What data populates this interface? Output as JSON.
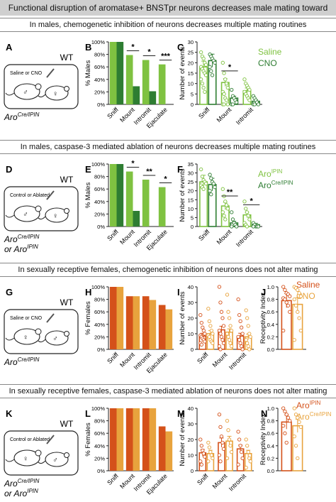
{
  "title": "Functional disruption of aromatase+ BNSTpr neurons decreases male mating toward females",
  "sections": [
    {
      "heading": "In males, chemogenetic inhibition of neurons decreases multiple mating routines"
    },
    {
      "heading": "In males, caspase-3 mediated ablation of neurons decreases multiple mating routines"
    },
    {
      "heading": "In sexually receptive females, chemogenetic inhibition of neurons does not alter mating"
    },
    {
      "heading": "In sexually receptive females, caspase-3 mediated ablation of neurons does not alter mating"
    }
  ],
  "colors": {
    "light_green": "#7fc241",
    "dark_green": "#2e7d32",
    "dark_orange": "#d4511a",
    "light_orange": "#e8a33d",
    "line": "#444444"
  },
  "schematics": [
    {
      "panel": "A",
      "wt": "WT",
      "inner": "Saline or CNO",
      "genotype_main": "Aro",
      "genotype_sup": "Cre/IPIN",
      "genotype2_main": "",
      "genotype2_sup": "",
      "mouse_sex": "male"
    },
    {
      "panel": "D",
      "wt": "WT",
      "inner": "Control or Ablated",
      "genotype_main": "Aro",
      "genotype_sup": "Cre/IPIN",
      "genotype2_main": "or Aro",
      "genotype2_sup": "IPIN",
      "mouse_sex": "male"
    },
    {
      "panel": "G",
      "wt": "WT",
      "inner": "Saline or CNO",
      "genotype_main": "Aro",
      "genotype_sup": "Cre/IPIN",
      "genotype2_main": "",
      "genotype2_sup": "",
      "mouse_sex": "female"
    },
    {
      "panel": "K",
      "wt": "WT",
      "inner": "Control or Ablated",
      "genotype_main": "Aro",
      "genotype_sup": "Cre/IPIN",
      "genotype2_main": "or Aro",
      "genotype2_sup": "IPIN",
      "mouse_sex": "female"
    }
  ],
  "legends": [
    {
      "items": [
        {
          "text": "Saline",
          "sup": "",
          "color": "#7fc241"
        },
        {
          "text": "CNO",
          "sup": "",
          "color": "#2e7d32"
        }
      ]
    },
    {
      "items": [
        {
          "text": "Aro",
          "sup": "IPIN",
          "color": "#7fc241"
        },
        {
          "text": "Aro",
          "sup": "Cre/IPIN",
          "color": "#2e7d32"
        }
      ]
    },
    {
      "items": [
        {
          "text": "Saline",
          "sup": "",
          "color": "#d4511a"
        },
        {
          "text": "CNO",
          "sup": "",
          "color": "#e8a33d"
        }
      ]
    },
    {
      "items": [
        {
          "text": "Aro",
          "sup": "IPIN",
          "color": "#d4511a"
        },
        {
          "text": "Aro",
          "sup": "Cre/IPIN",
          "color": "#e8a33d"
        }
      ]
    }
  ],
  "chart_data": [
    {
      "panel": "B",
      "type": "bar",
      "ylabel": "% Males",
      "yticks": [
        "0%",
        "20%",
        "40%",
        "60%",
        "80%",
        "100%"
      ],
      "ylim": [
        0,
        100
      ],
      "categories": [
        "Sniff",
        "Mount",
        "Intromit",
        "Ejaculate"
      ],
      "series": [
        {
          "values": [
            100,
            79,
            71,
            64
          ],
          "color": "#7fc241"
        },
        {
          "values": [
            100,
            29,
            21,
            0
          ],
          "color": "#2e7d32"
        }
      ],
      "sig": [
        {
          "category": 1,
          "text": "*"
        },
        {
          "category": 2,
          "text": "*"
        },
        {
          "category": 3,
          "text": "***"
        }
      ]
    },
    {
      "panel": "C",
      "type": "bar",
      "ylabel": "Number of events",
      "yticks": [
        "0",
        "5",
        "10",
        "15",
        "20",
        "25",
        "30"
      ],
      "ylim": [
        0,
        30
      ],
      "categories": [
        "Sniff",
        "Mount",
        "Intromit"
      ],
      "series": [
        {
          "values": [
            18,
            10.5,
            6.5
          ],
          "color": "#7fc241",
          "points": [
            [
              25,
              23,
              22,
              20,
              19,
              18,
              17,
              16,
              15,
              14,
              12,
              10,
              8,
              6
            ],
            [
              20,
              15,
              12,
              10,
              8,
              6,
              5,
              3,
              2,
              0,
              0,
              0
            ],
            [
              12,
              10,
              9,
              8,
              7,
              6,
              5,
              4,
              3,
              2
            ]
          ]
        },
        {
          "values": [
            21,
            3,
            1.5
          ],
          "color": "#2e7d32",
          "points": [
            [
              24,
              23,
              22,
              21,
              20,
              18,
              16,
              14
            ],
            [
              7,
              4,
              3,
              2,
              1,
              0,
              0
            ],
            [
              4,
              3,
              2,
              1,
              0,
              0,
              0
            ]
          ]
        }
      ],
      "sig": [
        {
          "category": 1,
          "text": "*"
        }
      ]
    },
    {
      "panel": "E",
      "type": "bar",
      "ylabel": "% Males",
      "yticks": [
        "0%",
        "20%",
        "40%",
        "60%",
        "80%",
        "100%"
      ],
      "ylim": [
        0,
        100
      ],
      "categories": [
        "Sniff",
        "Mount",
        "Intromit",
        "Ejaculate"
      ],
      "series": [
        {
          "values": [
            100,
            88,
            75,
            63
          ],
          "color": "#7fc241"
        },
        {
          "values": [
            100,
            25,
            0,
            0
          ],
          "color": "#2e7d32"
        }
      ],
      "sig": [
        {
          "category": 1,
          "text": "*"
        },
        {
          "category": 2,
          "text": "**"
        },
        {
          "category": 3,
          "text": "*"
        }
      ]
    },
    {
      "panel": "F",
      "type": "bar",
      "ylabel": "Number of events",
      "yticks": [
        "0",
        "5",
        "10",
        "15",
        "20",
        "25",
        "30",
        "35"
      ],
      "ylim": [
        0,
        35
      ],
      "categories": [
        "Sniff",
        "Mount",
        "Intromit"
      ],
      "series": [
        {
          "values": [
            25,
            11.5,
            6.5
          ],
          "color": "#7fc241",
          "points": [
            [
              32,
              28,
              26,
              25,
              24,
              23,
              22,
              21
            ],
            [
              21,
              17,
              14,
              12,
              10,
              8,
              6,
              4
            ],
            [
              14,
              10,
              8,
              6,
              4,
              2,
              1,
              0
            ]
          ]
        },
        {
          "values": [
            23.5,
            2,
            1
          ],
          "color": "#2e7d32",
          "points": [
            [
              29,
              27,
              25,
              24,
              22,
              20,
              18
            ],
            [
              8,
              4,
              2,
              1,
              0,
              0
            ],
            [
              2,
              1,
              0,
              0,
              0,
              0
            ]
          ]
        }
      ],
      "sig": [
        {
          "category": 1,
          "text": "**"
        },
        {
          "category": 2,
          "text": "*"
        }
      ]
    },
    {
      "panel": "H",
      "type": "bar",
      "ylabel": "% Females",
      "yticks": [
        "0%",
        "20%",
        "40%",
        "60%",
        "80%",
        "100%"
      ],
      "ylim": [
        0,
        100
      ],
      "categories": [
        "Sniff",
        "Mount",
        "Intromit",
        "Ejaculate"
      ],
      "series": [
        {
          "values": [
            100,
            85,
            85,
            71
          ],
          "color": "#d4511a"
        },
        {
          "values": [
            100,
            85,
            79,
            64
          ],
          "color": "#e8a33d"
        }
      ],
      "sig": []
    },
    {
      "panel": "I",
      "type": "bar",
      "ylabel": "Number of events",
      "yticks": [
        "0",
        "10",
        "20",
        "30",
        "40"
      ],
      "ylim": [
        0,
        40
      ],
      "categories": [
        "Sniff",
        "Mount",
        "Intromit"
      ],
      "series": [
        {
          "values": [
            8.5,
            12.5,
            8.5
          ],
          "color": "#d4511a",
          "points": [
            [
              22,
              17,
              14,
              12,
              10,
              9,
              8,
              7,
              6,
              5,
              4,
              3
            ],
            [
              40,
              30,
              24,
              20,
              15,
              12,
              10,
              8,
              6,
              4,
              2,
              0
            ],
            [
              32,
              22,
              18,
              14,
              10,
              8,
              6,
              4,
              2,
              0
            ]
          ]
        },
        {
          "values": [
            10,
            11,
            8
          ],
          "color": "#e8a33d",
          "points": [
            [
              26,
              18,
              15,
              12,
              10,
              9,
              8,
              6,
              5,
              4
            ],
            [
              35,
              24,
              20,
              15,
              12,
              10,
              8,
              6,
              4,
              2
            ],
            [
              25,
              20,
              15,
              10,
              8,
              6,
              4,
              2,
              0
            ]
          ]
        }
      ],
      "sig": []
    },
    {
      "panel": "J",
      "type": "bar",
      "ylabel": "Receptivity Index",
      "yticks": [
        "0.0",
        "0.2",
        "0.4",
        "0.6",
        "0.8",
        "1.0"
      ],
      "ylim": [
        0,
        1
      ],
      "categories": [
        ""
      ],
      "series": [
        {
          "values": [
            0.78
          ],
          "color": "#d4511a",
          "points": [
            [
              1.0,
              0.95,
              0.9,
              0.88,
              0.85,
              0.82,
              0.8,
              0.75,
              0.7,
              0.6,
              0.3
            ]
          ]
        },
        {
          "values": [
            0.72
          ],
          "color": "#e8a33d",
          "points": [
            [
              1.0,
              0.98,
              0.95,
              0.9,
              0.85,
              0.8,
              0.7,
              0.6,
              0.5,
              0.3,
              0.15
            ]
          ]
        }
      ],
      "sig": []
    },
    {
      "panel": "L",
      "type": "bar",
      "ylabel": "% Females",
      "yticks": [
        "0%",
        "20%",
        "40%",
        "60%",
        "80%",
        "100%"
      ],
      "ylim": [
        0,
        100
      ],
      "categories": [
        "Sniff",
        "Mount",
        "Intromit",
        "Ejaculate"
      ],
      "series": [
        {
          "values": [
            100,
            100,
            100,
            71
          ],
          "color": "#d4511a"
        },
        {
          "values": [
            100,
            100,
            100,
            63
          ],
          "color": "#e8a33d"
        }
      ],
      "sig": []
    },
    {
      "panel": "M",
      "type": "bar",
      "ylabel": "Number of events",
      "yticks": [
        "0",
        "10",
        "20",
        "30",
        "40"
      ],
      "ylim": [
        0,
        40
      ],
      "categories": [
        "Sniff",
        "Mount",
        "Intromit"
      ],
      "series": [
        {
          "values": [
            11.5,
            18,
            14
          ],
          "color": "#d4511a",
          "points": [
            [
              20,
              16,
              13,
              11,
              9,
              6,
              4
            ],
            [
              36,
              28,
              22,
              18,
              14,
              10,
              6
            ],
            [
              25,
              20,
              16,
              12,
              8,
              4
            ]
          ]
        },
        {
          "values": [
            11,
            19,
            11
          ],
          "color": "#e8a33d",
          "points": [
            [
              18,
              15,
              12,
              10,
              8,
              6
            ],
            [
              32,
              26,
              20,
              16,
              12,
              8
            ],
            [
              20,
              16,
              12,
              8,
              6,
              2
            ]
          ]
        }
      ],
      "sig": []
    },
    {
      "panel": "N",
      "type": "bar",
      "ylabel": "Receptivity Index",
      "yticks": [
        "0.0",
        "0.2",
        "0.4",
        "0.6",
        "0.8",
        "1.0"
      ],
      "ylim": [
        0,
        1
      ],
      "categories": [
        ""
      ],
      "series": [
        {
          "values": [
            0.78
          ],
          "color": "#d4511a",
          "points": [
            [
              1.0,
              0.95,
              0.9,
              0.85,
              0.8,
              0.72,
              0.6,
              0.45
            ]
          ]
        },
        {
          "values": [
            0.72
          ],
          "color": "#e8a33d",
          "points": [
            [
              1.0,
              0.9,
              0.85,
              0.78,
              0.7,
              0.55,
              0.4,
              0.2
            ]
          ]
        }
      ],
      "sig": []
    }
  ]
}
